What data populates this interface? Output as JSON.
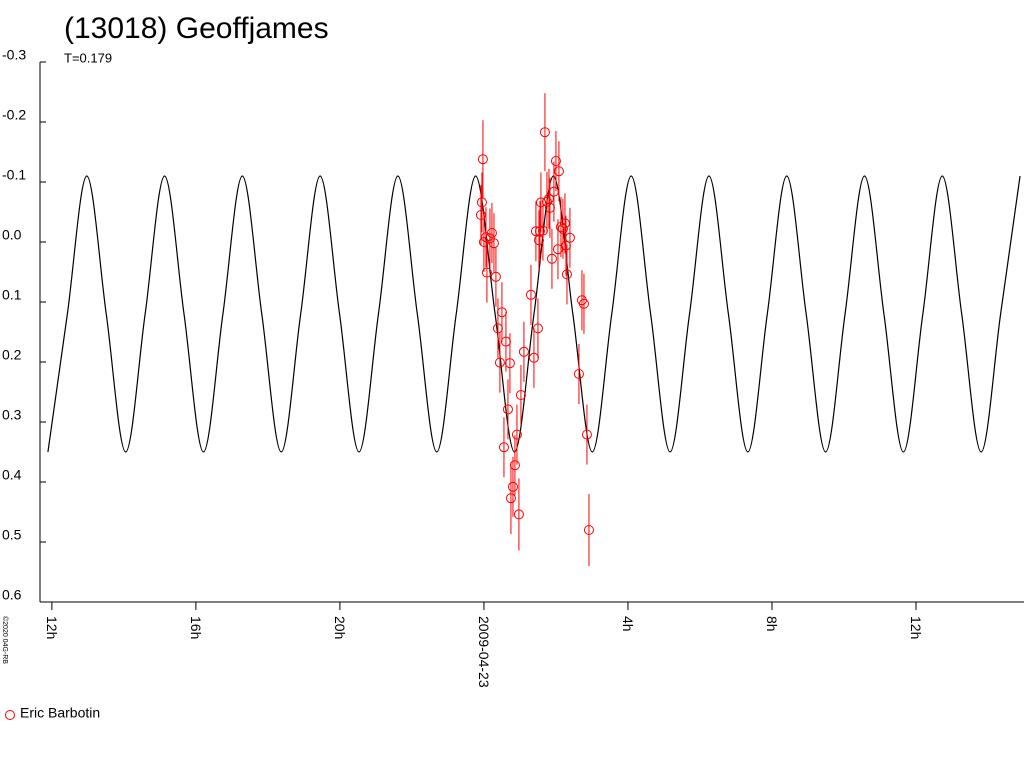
{
  "chart_data": {
    "type": "scatter",
    "title": "(13018) Geoffjames",
    "subtitle": "T=0.179",
    "credit": "©2020 04G-RB",
    "xlim": [
      -12.33,
      15
    ],
    "ylim": [
      -0.3,
      0.6
    ],
    "y_inverted": true,
    "xticks": [
      {
        "value": -12,
        "label": "12h"
      },
      {
        "value": -8,
        "label": "16h"
      },
      {
        "value": -4,
        "label": "20h"
      },
      {
        "value": 0,
        "label": "2009-04-23"
      },
      {
        "value": 4,
        "label": "4h"
      },
      {
        "value": 8,
        "label": "8h"
      },
      {
        "value": 12,
        "label": "12h"
      }
    ],
    "yticks": [
      -0.3,
      -0.2,
      -0.1,
      {
        "value": 0,
        "label": "0.0"
      },
      0.1,
      0.2,
      0.3,
      0.4,
      0.5,
      0.6
    ],
    "fit": {
      "color": "#000000",
      "x": [
        -12.11,
        -11.57,
        -11.03,
        -10.49,
        -9.95,
        -9.41,
        -8.87,
        -8.33,
        -7.79,
        -7.25,
        -6.71,
        -6.17,
        -5.63,
        -5.09,
        -4.55,
        -4.01,
        -3.47,
        -2.93,
        -2.39,
        -1.85,
        -1.31,
        -0.77,
        -0.23,
        0.31,
        0.85,
        1.39,
        1.93,
        2.47,
        3.01,
        3.55,
        4.09,
        4.63,
        5.17,
        5.71,
        6.25,
        6.79,
        7.33,
        7.87,
        8.41,
        8.95,
        9.49,
        10.03,
        10.57,
        11.11,
        11.65,
        12.19,
        12.73,
        13.27,
        13.81,
        14.35,
        14.89
      ],
      "values": [
        0.35,
        0.12,
        -0.11,
        0.12,
        0.35,
        0.12,
        -0.11,
        0.12,
        0.35,
        0.12,
        -0.11,
        0.12,
        0.35,
        0.12,
        -0.11,
        0.12,
        0.35,
        0.12,
        -0.11,
        0.12,
        0.35,
        0.12,
        -0.11,
        0.12,
        0.35,
        0.12,
        -0.11,
        0.12,
        0.35,
        0.12,
        -0.11,
        0.12,
        0.35,
        0.12,
        -0.11,
        0.12,
        0.35,
        0.12,
        -0.11,
        0.12,
        0.35,
        0.12,
        -0.11,
        0.12,
        0.35,
        0.12,
        -0.11,
        0.12,
        0.35,
        0.12,
        -0.11
      ]
    },
    "series": [
      {
        "name": "Eric Barbotin",
        "color": "#ff0000",
        "x": [
          -0.083,
          -0.028,
          -0.056,
          0,
          0.056,
          0.083,
          0.167,
          0.222,
          0.278,
          0.333,
          0.389,
          0.444,
          0.5,
          0.556,
          0.611,
          0.667,
          0.722,
          0.75,
          0.806,
          0.861,
          0.917,
          0.972,
          1.028,
          1.111,
          1.306,
          1.389,
          1.444,
          1.5,
          1.528,
          1.556,
          1.583,
          1.639,
          1.694,
          1.75,
          1.806,
          1.833,
          1.889,
          1.944,
          2.0,
          2.056,
          2.083,
          2.139,
          2.194,
          2.25,
          2.278,
          2.306,
          2.389,
          2.639,
          2.722,
          2.778,
          2.861,
          2.917
        ],
        "values": [
          -0.045,
          -0.138,
          -0.066,
          0.0,
          -0.008,
          0.051,
          -0.006,
          -0.015,
          0.002,
          0.058,
          0.144,
          0.201,
          0.117,
          0.342,
          0.166,
          0.279,
          0.202,
          0.427,
          0.408,
          0.372,
          0.321,
          0.454,
          0.255,
          0.183,
          0.088,
          0.193,
          -0.018,
          0.144,
          -0.003,
          -0.018,
          -0.066,
          -0.019,
          -0.183,
          -0.067,
          -0.072,
          -0.057,
          0.028,
          -0.084,
          -0.135,
          0.012,
          -0.118,
          -0.025,
          -0.022,
          -0.031,
          0.006,
          0.054,
          -0.007,
          0.22,
          0.097,
          0.103,
          0.321,
          0.48
        ],
        "errors": [
          0.05,
          0.065,
          0.05,
          0.05,
          0.05,
          0.05,
          0.05,
          0.05,
          0.05,
          0.05,
          0.05,
          0.05,
          0.05,
          0.05,
          0.05,
          0.05,
          0.05,
          0.06,
          0.05,
          0.05,
          0.05,
          0.06,
          0.05,
          0.05,
          0.05,
          0.05,
          0.05,
          0.05,
          0.05,
          0.05,
          0.05,
          0.05,
          0.065,
          0.05,
          0.05,
          0.05,
          0.05,
          0.05,
          0.05,
          0.05,
          0.05,
          0.05,
          0.05,
          0.05,
          0.05,
          0.05,
          0.05,
          0.05,
          0.05,
          0.05,
          0.05,
          0.06
        ]
      }
    ]
  }
}
